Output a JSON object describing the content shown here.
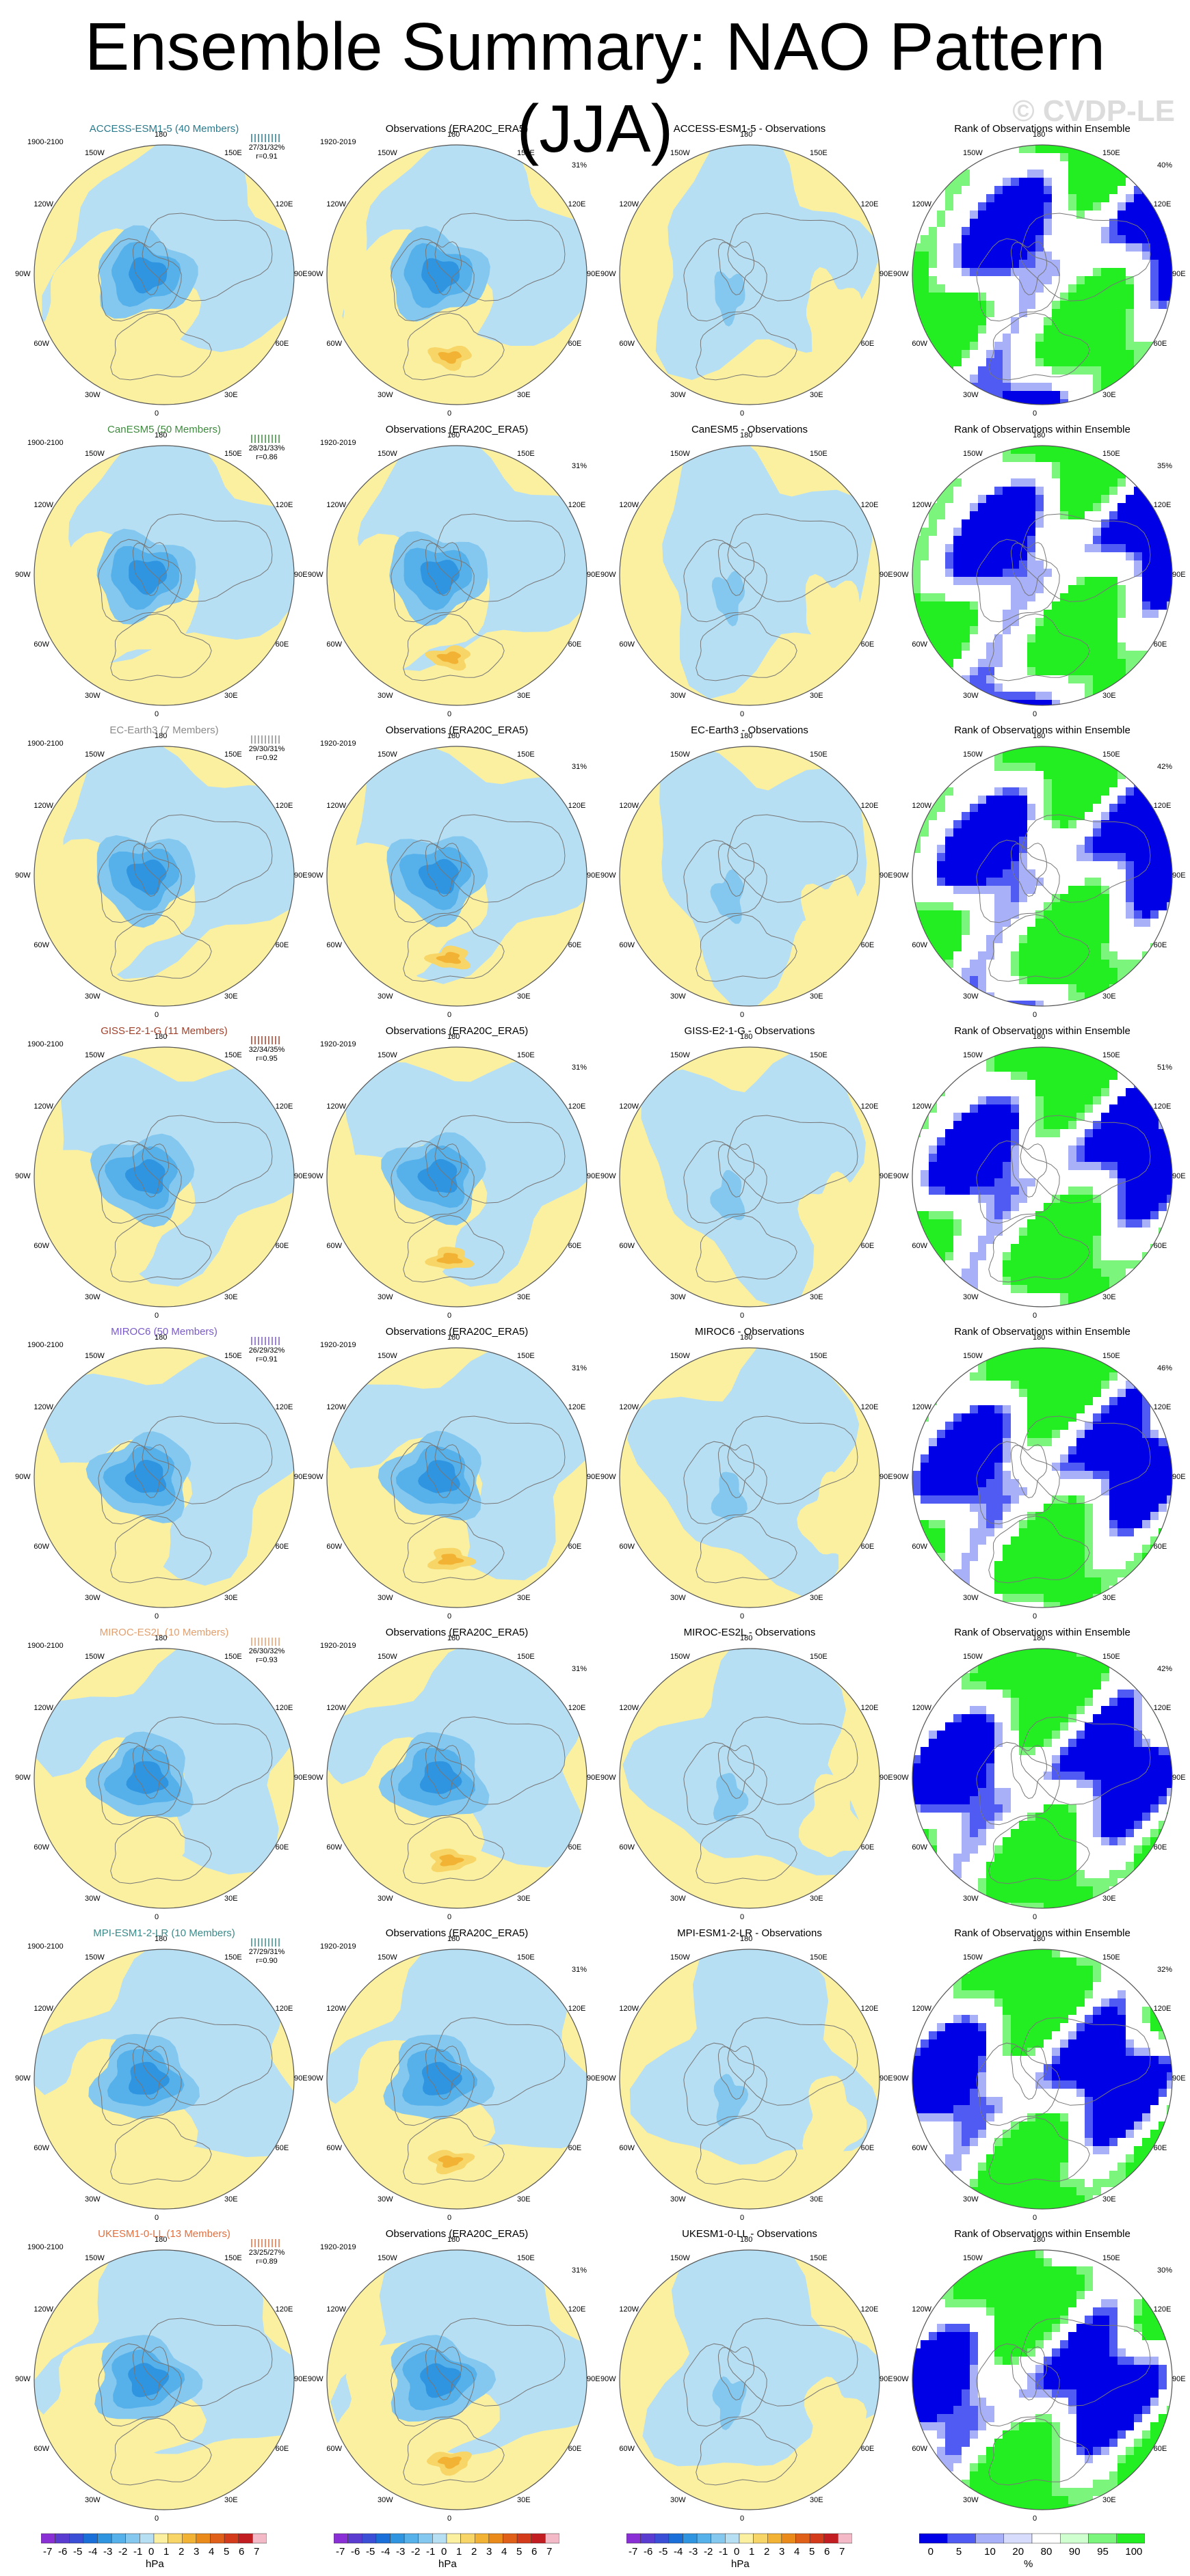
{
  "page": {
    "title": "Ensemble Summary: NAO Pattern (JJA)",
    "watermark": "© CVDP-LE"
  },
  "colors": {
    "ocean_neg": "#b7dff3",
    "land_pos": "#fbf0a0",
    "neg_levels": [
      "#b7dff3",
      "#84c8ef",
      "#56b0ea",
      "#2f95e0",
      "#1b6fd8",
      "#3b4fd6",
      "#5b3cd1",
      "#8a2fd6"
    ],
    "pos_levels": [
      "#fbf0a0",
      "#f7d567",
      "#f2b233",
      "#ea8a1b",
      "#e0601a",
      "#d33b1b",
      "#c21e22",
      "#f4b9c6"
    ],
    "rank_colors": [
      "#0000e6",
      "#4f5bf2",
      "#a8b0f8",
      "#d8dcfc",
      "#ffffff",
      "#cfffcf",
      "#7bf57b",
      "#22ee22"
    ],
    "circle": "#555555"
  },
  "column_titles": {
    "obs": "Observations (ERA20C_ERA5)",
    "rank": "Rank of Observations within Ensemble"
  },
  "period_labels": {
    "model": "1900-2100",
    "obs": "1920-2019"
  },
  "lon_labels": [
    "180",
    "150E",
    "120E",
    "90E",
    "60E",
    "30E",
    "0",
    "30W",
    "60W",
    "90W",
    "120W",
    "150W"
  ],
  "chart_data": {
    "type": "heatmap",
    "description_type": "polar stereographic maps, 8 ensembles x 4 panels",
    "rows": [
      {
        "model": "ACCESS-ESM1-5 (40 Members)",
        "model_color": "#2a7a8c",
        "diff_title": "ACCESS-ESM1-5 - Observations",
        "pct_stat": "27/31/32%",
        "r_stat": "r=0.91",
        "obs_pct": "31%",
        "rank_pct": "40%"
      },
      {
        "model": "CanESM5 (50 Members)",
        "model_color": "#3e8a3e",
        "diff_title": "CanESM5 - Observations",
        "pct_stat": "28/31/33%",
        "r_stat": "r=0.86",
        "obs_pct": "31%",
        "rank_pct": "35%"
      },
      {
        "model": "EC-Earth3 (7 Members)",
        "model_color": "#8a8a8a",
        "diff_title": "EC-Earth3 - Observations",
        "pct_stat": "29/30/31%",
        "r_stat": "r=0.92",
        "obs_pct": "31%",
        "rank_pct": "42%"
      },
      {
        "model": "GISS-E2-1-G (11 Members)",
        "model_color": "#a0402a",
        "diff_title": "GISS-E2-1-G - Observations",
        "pct_stat": "32/34/35%",
        "r_stat": "r=0.95",
        "obs_pct": "31%",
        "rank_pct": "51%"
      },
      {
        "model": "MIROC6 (50 Members)",
        "model_color": "#7a5ac8",
        "diff_title": "MIROC6 - Observations",
        "pct_stat": "26/29/32%",
        "r_stat": "r=0.91",
        "obs_pct": "31%",
        "rank_pct": "46%"
      },
      {
        "model": "MIROC-ES2L (10 Members)",
        "model_color": "#e0a070",
        "diff_title": "MIROC-ES2L - Observations",
        "pct_stat": "26/30/32%",
        "r_stat": "r=0.93",
        "obs_pct": "31%",
        "rank_pct": "42%"
      },
      {
        "model": "MPI-ESM1-2-LR (10 Members)",
        "model_color": "#3a8a8a",
        "diff_title": "MPI-ESM1-2-LR - Observations",
        "pct_stat": "27/29/31%",
        "r_stat": "r=0.90",
        "obs_pct": "31%",
        "rank_pct": "32%"
      },
      {
        "model": "UKESM1-0-LL (13 Members)",
        "model_color": "#e07040",
        "diff_title": "UKESM1-0-LL - Observations",
        "pct_stat": "23/25/27%",
        "r_stat": "r=0.89",
        "obs_pct": "31%",
        "rank_pct": "30%"
      }
    ],
    "colorbar_hpa": {
      "tick_labels": [
        "-7",
        "-6",
        "-5",
        "-4",
        "-3",
        "-2",
        "-1",
        "0",
        "1",
        "2",
        "3",
        "4",
        "5",
        "6",
        "7"
      ],
      "units": "hPa"
    },
    "colorbar_rank": {
      "tick_labels": [
        "0",
        "5",
        "10",
        "20",
        "80",
        "90",
        "95",
        "100"
      ],
      "units": "%"
    }
  }
}
